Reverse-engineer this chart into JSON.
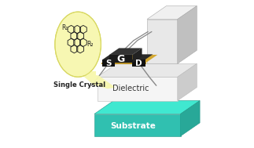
{
  "bg_color": "#ffffff",
  "bubble_color": "#f7f7b0",
  "bubble_ec": "#d8d860",
  "substrate_top": "#40e8d0",
  "substrate_front": "#30c0b0",
  "substrate_right": "#28a898",
  "dielectric_front": "#f5f5f5",
  "dielectric_top": "#e8e8e8",
  "dielectric_right": "#cccccc",
  "gate_color": "#1a1a1a",
  "electrode_color": "#111111",
  "crystal_top": "#d4a830",
  "crystal_front": "#b89028",
  "wire_color": "#888888",
  "panel_front": "#e8e8e8",
  "panel_right": "#c0c0c0",
  "panel_top": "#f0f0f0",
  "label_G": "G",
  "label_S": "S",
  "label_D": "D",
  "label_dielectric": "Dielectric",
  "label_substrate": "Substrate",
  "label_crystal": "Single Crystal",
  "mol_ec": "#222222",
  "R1_label": "R₁",
  "R2_label": "R₂"
}
